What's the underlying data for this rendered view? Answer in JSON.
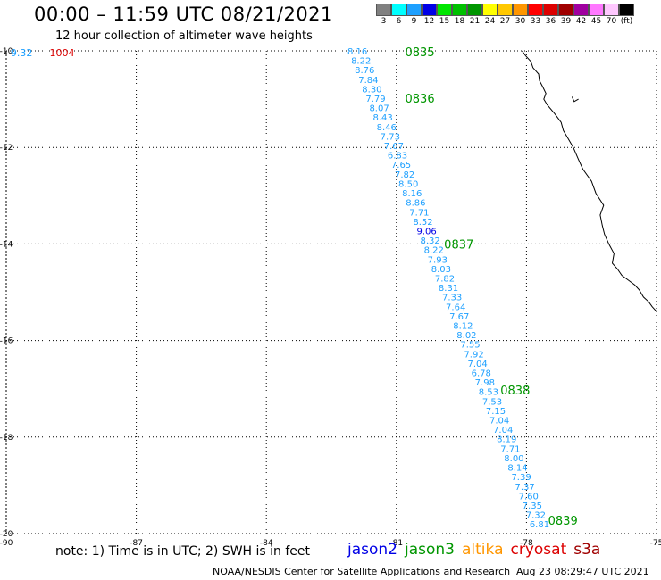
{
  "title": "00:00 – 11:59 UTC 08/21/2021",
  "subtitle": "12 hour collection of altimeter wave heights",
  "color_scale": [
    {
      "label": "3",
      "color": "#808080"
    },
    {
      "label": "6",
      "color": "#00ffff"
    },
    {
      "label": "9",
      "color": "#1ea0ff"
    },
    {
      "label": "12",
      "color": "#0000e6"
    },
    {
      "label": "15",
      "color": "#00e600"
    },
    {
      "label": "18",
      "color": "#00c000"
    },
    {
      "label": "21",
      "color": "#009600"
    },
    {
      "label": "24",
      "color": "#ffff00"
    },
    {
      "label": "27",
      "color": "#ffc800"
    },
    {
      "label": "30",
      "color": "#ff9600"
    },
    {
      "label": "33",
      "color": "#ff0000"
    },
    {
      "label": "36",
      "color": "#dc0000"
    },
    {
      "label": "39",
      "color": "#a00000"
    },
    {
      "label": "42",
      "color": "#a000a0"
    },
    {
      "label": "45",
      "color": "#ff78ff"
    },
    {
      "label": "70",
      "color": "#ffc8ff"
    },
    {
      "label": "(ft)",
      "color": "#000000"
    }
  ],
  "axes": {
    "lon_range": [
      -90,
      -75
    ],
    "lat_range": [
      -20,
      -10
    ],
    "lon_ticks": [
      "-90",
      "-87",
      "-84",
      "-81",
      "-78",
      "-75"
    ],
    "lat_ticks": [
      "-10",
      "-12",
      "-14",
      "-16",
      "-18",
      "-20"
    ]
  },
  "track": {
    "color": "#1ea0ff",
    "start": {
      "lon": -81.9,
      "lat": -10.0
    },
    "end": {
      "lon": -77.7,
      "lat": -19.8
    },
    "values": [
      "8.16",
      "8.22",
      "8.76",
      "7.84",
      "8.30",
      "7.79",
      "8.07",
      "8.43",
      "8.46",
      "7.73",
      "7.67",
      "6.83",
      "7.65",
      "7.82",
      "8.50",
      "8.16",
      "8.86",
      "7.71",
      "8.52",
      "9.06",
      "8.32",
      "8.22",
      "7.93",
      "8.03",
      "7.82",
      "8.31",
      "7.33",
      "7.64",
      "7.67",
      "8.12",
      "8.02",
      "7.55",
      "7.92",
      "7.04",
      "6.78",
      "7.98",
      "8.53",
      "7.53",
      "7.15",
      "7.04",
      "7.04",
      "8.19",
      "7.71",
      "8.00",
      "8.14",
      "7.39",
      "7.37",
      "7.60",
      "7.35",
      "7.32",
      "6.81"
    ],
    "highlight": {
      "index": 19,
      "color": "#0000e6"
    }
  },
  "time_labels": [
    {
      "label": "0835",
      "lon": -80.8,
      "lat": -10.02,
      "color": "#009600"
    },
    {
      "label": "0836",
      "lon": -80.8,
      "lat": -10.98,
      "color": "#009600"
    },
    {
      "label": "0837",
      "lon": -79.9,
      "lat": -14.0,
      "color": "#009600"
    },
    {
      "label": "0838",
      "lon": -78.6,
      "lat": -17.02,
      "color": "#009600"
    },
    {
      "label": "0839",
      "lon": -77.5,
      "lat": -19.72,
      "color": "#009600"
    }
  ],
  "corner_marks": [
    {
      "label": "9.32",
      "color": "#1ea0ff",
      "lon": -89.9,
      "lat": -10.02
    },
    {
      "label": "1004",
      "color": "#dc0000",
      "lon": -89.0,
      "lat": -10.02
    }
  ],
  "coastline": [
    [
      -78.1,
      -10.0
    ],
    [
      -78.02,
      -10.1
    ],
    [
      -77.9,
      -10.22
    ],
    [
      -77.85,
      -10.35
    ],
    [
      -77.72,
      -10.48
    ],
    [
      -77.7,
      -10.62
    ],
    [
      -77.62,
      -10.75
    ],
    [
      -77.55,
      -10.88
    ],
    [
      -77.6,
      -11.0
    ],
    [
      -77.52,
      -11.12
    ],
    [
      -77.35,
      -11.3
    ],
    [
      -77.2,
      -11.48
    ],
    [
      -77.15,
      -11.65
    ],
    [
      -77.05,
      -11.8
    ],
    [
      -76.92,
      -12.0
    ],
    [
      -76.8,
      -12.25
    ],
    [
      -76.7,
      -12.45
    ],
    [
      -76.5,
      -12.7
    ],
    [
      -76.4,
      -12.95
    ],
    [
      -76.22,
      -13.2
    ],
    [
      -76.3,
      -13.4
    ],
    [
      -76.25,
      -13.62
    ],
    [
      -76.2,
      -13.8
    ],
    [
      -76.1,
      -14.0
    ],
    [
      -75.98,
      -14.2
    ],
    [
      -76.02,
      -14.4
    ],
    [
      -75.9,
      -14.52
    ],
    [
      -75.8,
      -14.65
    ],
    [
      -75.65,
      -14.75
    ],
    [
      -75.5,
      -14.85
    ],
    [
      -75.4,
      -14.95
    ],
    [
      -75.3,
      -15.1
    ],
    [
      -75.18,
      -15.2
    ],
    [
      -75.1,
      -15.3
    ],
    [
      -75.0,
      -15.4
    ]
  ],
  "island": [
    [
      -76.95,
      -10.95
    ],
    [
      -76.9,
      -11.05
    ],
    [
      -76.8,
      -11.0
    ]
  ],
  "note": "note:  1) Time is in UTC;  2) SWH is in feet",
  "legend": [
    {
      "label": "jason2",
      "color": "#0000e6"
    },
    {
      "label": "jason3",
      "color": "#009600"
    },
    {
      "label": "altika",
      "color": "#ff9600"
    },
    {
      "label": "cryosat",
      "color": "#dc0000"
    },
    {
      "label": "s3a",
      "color": "#a00000"
    }
  ],
  "credit": "NOAA/NESDIS Center for Satellite Applications and Research",
  "timestamp": "Aug 23 08:29:47 UTC 2021"
}
